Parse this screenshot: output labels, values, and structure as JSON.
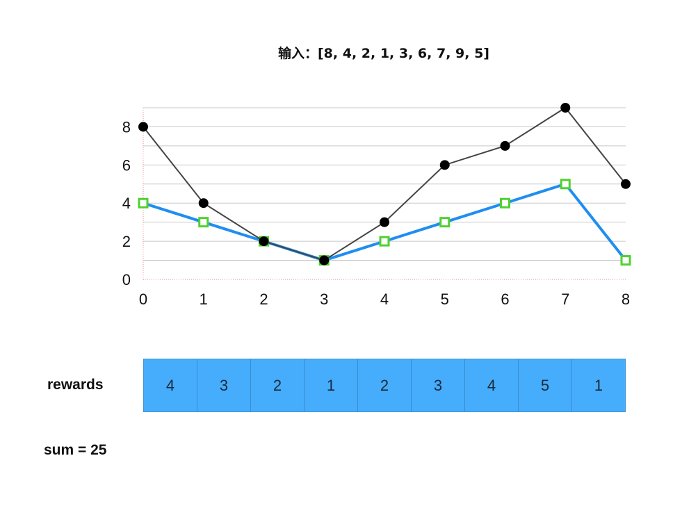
{
  "title": "输入：[8, 4, 2, 1, 3, 6, 7, 9, 5]",
  "chart_data": {
    "type": "line",
    "x": [
      0,
      1,
      2,
      3,
      4,
      5,
      6,
      7,
      8
    ],
    "xticks": [
      "0",
      "1",
      "2",
      "3",
      "4",
      "5",
      "6",
      "7",
      "8"
    ],
    "yticks": [
      "0",
      "2",
      "4",
      "6",
      "8"
    ],
    "ylim": [
      0,
      9
    ],
    "xlim": [
      0,
      8
    ],
    "grid": true,
    "series": [
      {
        "values": [
          8,
          4,
          2,
          1,
          3,
          6,
          7,
          9,
          5
        ],
        "color": "#000000",
        "marker": "circle"
      },
      {
        "values": [
          4,
          3,
          2,
          1,
          2,
          3,
          4,
          5,
          1
        ],
        "color": "#1f8ef1",
        "marker": "square",
        "marker_color": "#4fd12e"
      }
    ]
  },
  "rewards": {
    "label": "rewards",
    "values": [
      "4",
      "3",
      "2",
      "1",
      "2",
      "3",
      "4",
      "5",
      "1"
    ],
    "color": "#45adfc"
  },
  "sum_text": "sum = 25"
}
